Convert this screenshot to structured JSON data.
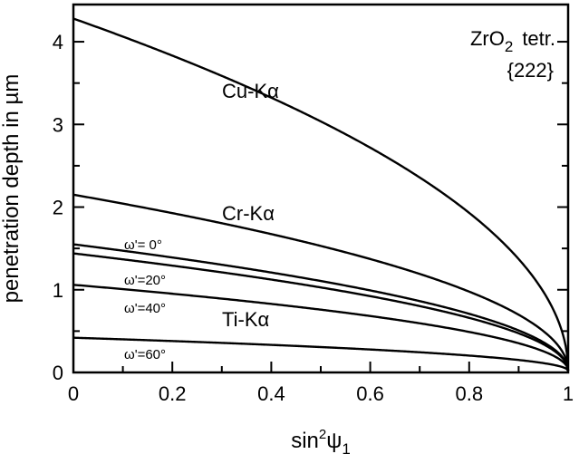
{
  "chart_data": {
    "type": "line",
    "xlabel_main": "sin",
    "xlabel_sup": "2",
    "xlabel_psi": "ψ",
    "xlabel_sub": "1",
    "ylabel": "penetration depth in µm",
    "xlim": [
      0,
      1
    ],
    "ylim": [
      0,
      4.45
    ],
    "x_ticks": [
      0,
      0.2,
      0.4,
      0.6,
      0.8,
      1
    ],
    "x_tick_labels": [
      "0",
      "0.2",
      "0.4",
      "0.6",
      "0.8",
      "1"
    ],
    "y_ticks": [
      0,
      1,
      2,
      3,
      4
    ],
    "y_tick_labels": [
      "0",
      "1",
      "2",
      "3",
      "4"
    ],
    "annotation_title_main": "ZrO",
    "annotation_title_sub": "2",
    "annotation_title_rest": "tetr.",
    "annotation_reflection": "{222}",
    "series": [
      {
        "name": "Cu-Kα",
        "y0": 4.28
      },
      {
        "name": "Cr-Kα",
        "y0": 2.15
      },
      {
        "name": "ω'=  0°",
        "y0": 1.55
      },
      {
        "name": "ω'=20°",
        "y0": 1.44
      },
      {
        "name": "ω'=40°",
        "y0": 1.06
      },
      {
        "name": "ω'=60°",
        "y0": 0.42
      }
    ],
    "label_titanium": "Ti-Kα"
  }
}
